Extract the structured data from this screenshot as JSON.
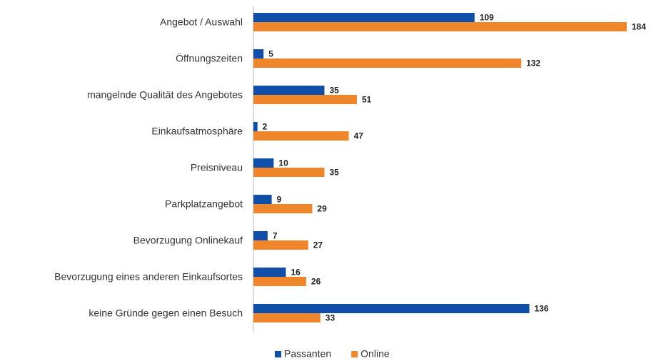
{
  "chart_data": {
    "type": "barh",
    "categories": [
      "Angebot / Auswahl",
      "Öffnungszeiten",
      "mangelnde Qualität des Angebotes",
      "Einkaufsatmosphäre",
      "Preisniveau",
      "Parkplatzangebot",
      "Bevorzugung Onlinekauf",
      "Bevorzugung eines anderen Einkaufsortes",
      "keine Gründe gegen einen Besuch"
    ],
    "series": [
      {
        "name": "Passanten",
        "color": "#0f4fa8",
        "values": [
          109,
          5,
          35,
          2,
          10,
          9,
          7,
          16,
          136
        ]
      },
      {
        "name": "Online",
        "color": "#f0862c",
        "values": [
          184,
          132,
          51,
          47,
          35,
          29,
          27,
          26,
          33
        ]
      }
    ],
    "legend": "bottom"
  }
}
